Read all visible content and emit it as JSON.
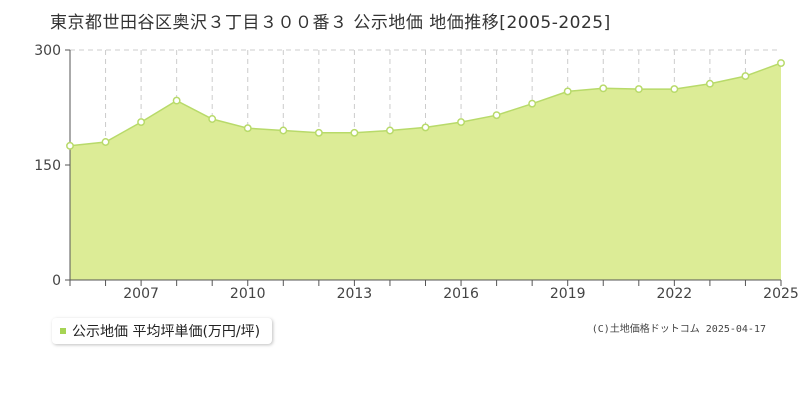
{
  "colors": {
    "fill": "#dcec96",
    "line": "#b8da6a",
    "marker_fill": "#ffffff",
    "marker_stroke": "#b8da6a",
    "grid": "#cccccc",
    "legend_swatch": "#a6d454"
  },
  "credit": "(C)土地価格ドットコム 2025-04-17",
  "chart_data": {
    "type": "area",
    "title": "東京都世田谷区奥沢３丁目３００番３ 公示地価 地価推移[2005-2025]",
    "xlabel": "",
    "ylabel": "",
    "x": [
      2005,
      2006,
      2007,
      2008,
      2009,
      2010,
      2011,
      2012,
      2013,
      2014,
      2015,
      2016,
      2017,
      2018,
      2019,
      2020,
      2021,
      2022,
      2023,
      2024,
      2025
    ],
    "xlim": [
      2005,
      2025
    ],
    "x_tick_labels": [
      "2007",
      "2010",
      "2013",
      "2016",
      "2019",
      "2022",
      "2025"
    ],
    "y_tick_labels": [
      "0",
      "150",
      "300"
    ],
    "ylim": [
      0,
      300
    ],
    "grid": true,
    "legend_position": "bottom-left",
    "series": [
      {
        "name": "公示地価 平均坪単価(万円/坪)",
        "values": [
          175,
          180,
          206,
          234,
          210,
          198,
          195,
          192,
          192,
          195,
          199,
          206,
          215,
          230,
          246,
          250,
          249,
          249,
          256,
          266,
          283
        ]
      }
    ]
  }
}
